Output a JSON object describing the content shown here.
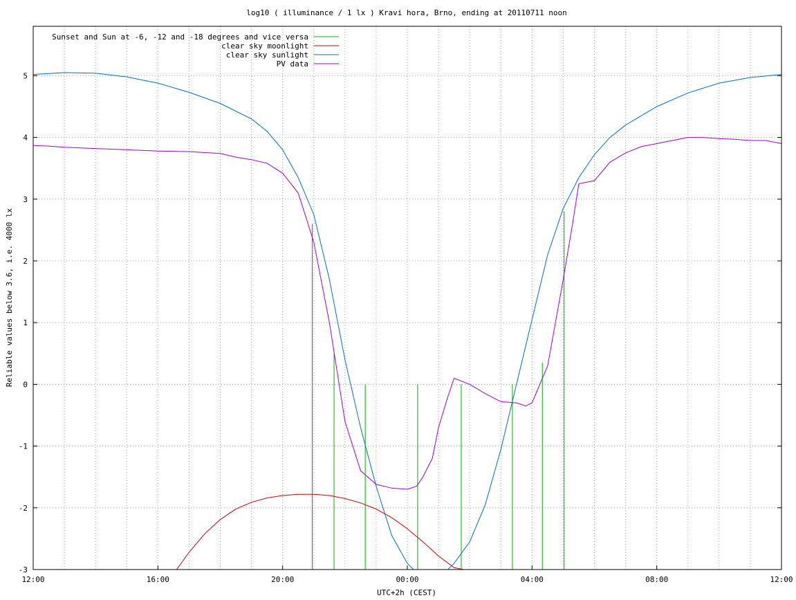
{
  "chart_data": {
    "type": "line",
    "title": "log10 ( illuminance / 1 lx ) Kravi hora, Brno, ending at 20110711 noon",
    "xlabel": "UTC+2h (CEST)",
    "ylabel": "Reliable values below 3.6, i.e. 4000 lx",
    "xlim": [
      0,
      24
    ],
    "ylim": [
      -3,
      5.8
    ],
    "x_unit": "hours since 12:00 (2011-07-10, UTC+2h)",
    "x_ticks": [
      {
        "x": 0,
        "label": "12:00"
      },
      {
        "x": 4,
        "label": "16:00"
      },
      {
        "x": 8,
        "label": "20:00"
      },
      {
        "x": 12,
        "label": "00:00"
      },
      {
        "x": 16,
        "label": "04:00"
      },
      {
        "x": 20,
        "label": "08:00"
      },
      {
        "x": 24,
        "label": "12:00"
      }
    ],
    "y_ticks": [
      -3,
      -2,
      -1,
      0,
      1,
      2,
      3,
      4,
      5
    ],
    "grid": true,
    "legend_position": "top-left",
    "series": [
      {
        "name": "Sunset and Sun at -6, -12 and -18 degrees and vice versa",
        "color": "#00b000",
        "style": "vertical-markers",
        "markers": [
          {
            "x": 8.95,
            "y_top": 2.6
          },
          {
            "x": 9.65,
            "y_top": 0.5
          },
          {
            "x": 10.65,
            "y_top": 0.0
          },
          {
            "x": 12.33,
            "y_top": 0.0
          },
          {
            "x": 13.73,
            "y_top": 0.0
          },
          {
            "x": 15.37,
            "y_top": 0.0
          },
          {
            "x": 16.33,
            "y_top": 0.35
          },
          {
            "x": 17.03,
            "y_top": 2.8
          }
        ]
      },
      {
        "name": "clear sky moonlight",
        "color": "#d00000",
        "x": [
          4.6,
          5.0,
          5.5,
          6.0,
          6.5,
          7.0,
          7.5,
          8.0,
          8.5,
          9.0,
          9.5,
          10.0,
          10.5,
          11.0,
          11.5,
          12.0,
          12.5,
          13.0,
          13.5,
          13.8
        ],
        "y": [
          -3.0,
          -2.72,
          -2.42,
          -2.19,
          -2.02,
          -1.91,
          -1.84,
          -1.8,
          -1.78,
          -1.78,
          -1.8,
          -1.85,
          -1.92,
          -2.02,
          -2.16,
          -2.34,
          -2.55,
          -2.78,
          -2.97,
          -3.0
        ]
      },
      {
        "name": "clear sky sunlight",
        "color": "#0070c0",
        "x": [
          0,
          1,
          2,
          3,
          4,
          5,
          6,
          7,
          7.5,
          8,
          8.5,
          9,
          9.5,
          10,
          10.5,
          11,
          11.5,
          12,
          12.2,
          13.3,
          13.5,
          14,
          14.5,
          15,
          15.5,
          16,
          16.5,
          17,
          17.5,
          18,
          18.5,
          19,
          20,
          21,
          22,
          23,
          24
        ],
        "y": [
          5.02,
          5.05,
          5.04,
          4.98,
          4.88,
          4.73,
          4.55,
          4.3,
          4.1,
          3.8,
          3.35,
          2.75,
          1.7,
          0.4,
          -0.7,
          -1.65,
          -2.45,
          -2.9,
          -3.0,
          -3.0,
          -2.9,
          -2.55,
          -1.95,
          -1.05,
          0.0,
          1.05,
          2.1,
          2.85,
          3.35,
          3.72,
          4.0,
          4.2,
          4.5,
          4.72,
          4.88,
          4.97,
          5.02
        ]
      },
      {
        "name": "PV data",
        "color": "#a000e0",
        "x": [
          0,
          0.5,
          1,
          2,
          3,
          4,
          5,
          6,
          6.5,
          7,
          7.5,
          8,
          8.5,
          9,
          9.5,
          10,
          10.5,
          11,
          11.5,
          12,
          12.3,
          12.5,
          12.8,
          13.0,
          13.3,
          13.5,
          14,
          14.5,
          15,
          15.5,
          15.8,
          16,
          16.5,
          17,
          17.3,
          17.5,
          18,
          18.5,
          19,
          19.5,
          20,
          20.5,
          21,
          21.5,
          22,
          22.5,
          23,
          23.5,
          24
        ],
        "y": [
          3.87,
          3.86,
          3.84,
          3.82,
          3.8,
          3.78,
          3.77,
          3.74,
          3.68,
          3.64,
          3.58,
          3.42,
          3.1,
          2.3,
          1.0,
          -0.6,
          -1.4,
          -1.62,
          -1.68,
          -1.7,
          -1.65,
          -1.5,
          -1.2,
          -0.7,
          -0.2,
          0.1,
          0.0,
          -0.15,
          -0.28,
          -0.3,
          -0.35,
          -0.3,
          0.3,
          1.7,
          2.6,
          3.25,
          3.3,
          3.6,
          3.75,
          3.85,
          3.9,
          3.95,
          4.0,
          4.0,
          3.98,
          3.97,
          3.95,
          3.95,
          3.9
        ]
      }
    ]
  }
}
